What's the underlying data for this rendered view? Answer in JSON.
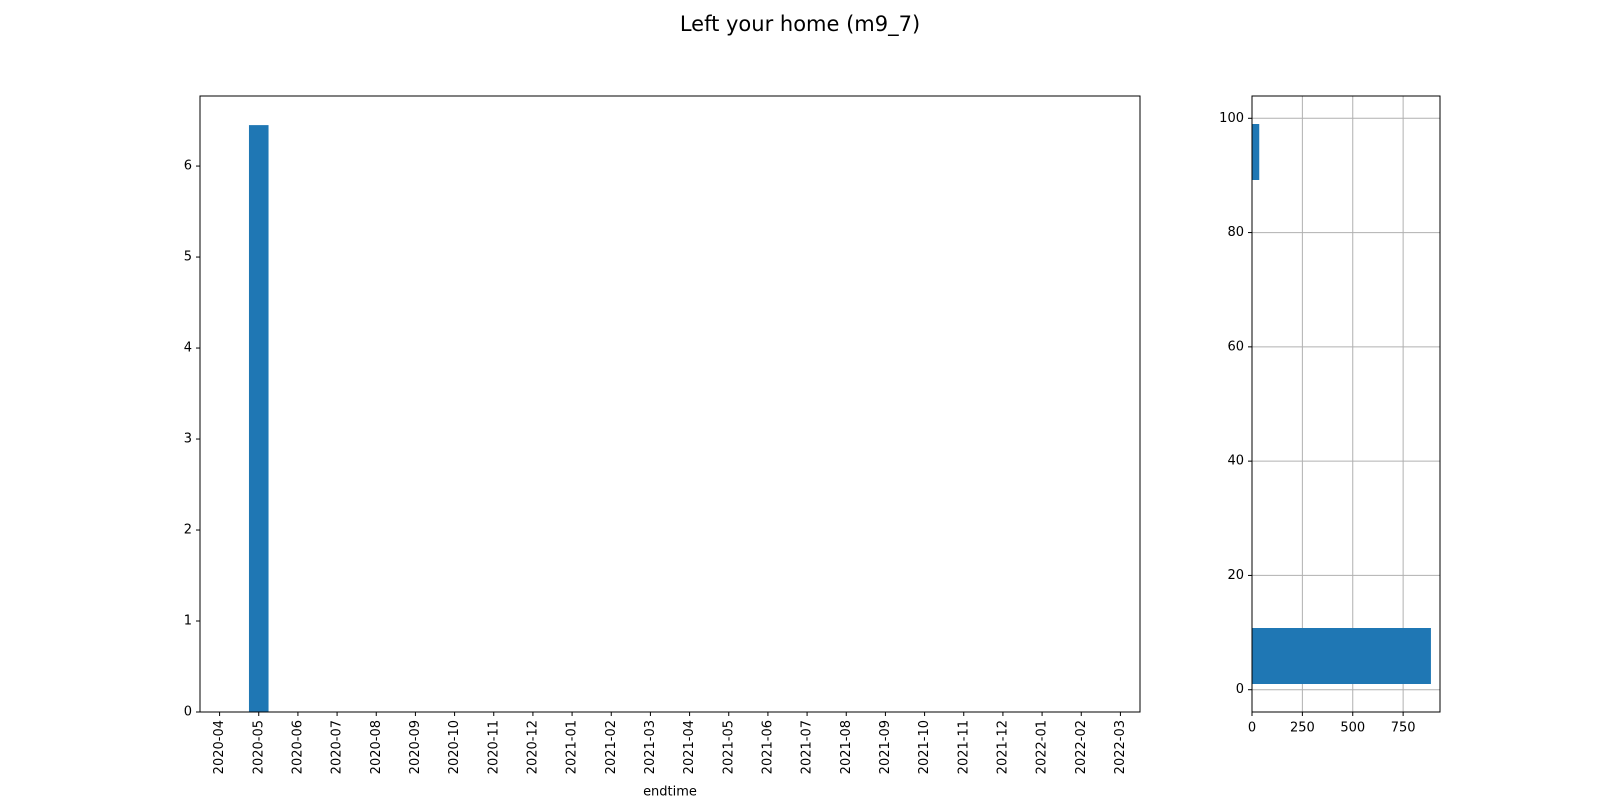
{
  "title": "Left your home (m9_7)",
  "chart_data": [
    {
      "type": "bar",
      "x_label": "endtime",
      "color": "#1f77b4",
      "categories": [
        "2020-04",
        "2020-05",
        "2020-06",
        "2020-07",
        "2020-08",
        "2020-09",
        "2020-10",
        "2020-11",
        "2020-12",
        "2021-01",
        "2021-02",
        "2021-03",
        "2021-04",
        "2021-05",
        "2021-06",
        "2021-07",
        "2021-08",
        "2021-09",
        "2021-10",
        "2021-11",
        "2021-12",
        "2022-01",
        "2022-02",
        "2022-03"
      ],
      "values": [
        0,
        6.45,
        0,
        0,
        0,
        0,
        0,
        0,
        0,
        0,
        0,
        0,
        0,
        0,
        0,
        0,
        0,
        0,
        0,
        0,
        0,
        0,
        0,
        0
      ],
      "ylim": [
        0,
        6.77
      ],
      "yticks": [
        0,
        1,
        2,
        3,
        4,
        5,
        6
      ],
      "grid": false
    },
    {
      "type": "histogram",
      "orientation": "horizontal",
      "color": "#1f77b4",
      "bins": [
        1,
        10.8,
        20.6,
        30.4,
        40.2,
        50,
        59.8,
        69.6,
        79.4,
        89.2,
        99
      ],
      "values": [
        888,
        0,
        0,
        0,
        0,
        0,
        0,
        0,
        0,
        36
      ],
      "xlim": [
        0,
        933
      ],
      "xticks": [
        0,
        250,
        500,
        750
      ],
      "ylim": [
        -3.9,
        103.9
      ],
      "yticks": [
        0,
        20,
        40,
        60,
        80,
        100
      ],
      "grid": true
    }
  ]
}
